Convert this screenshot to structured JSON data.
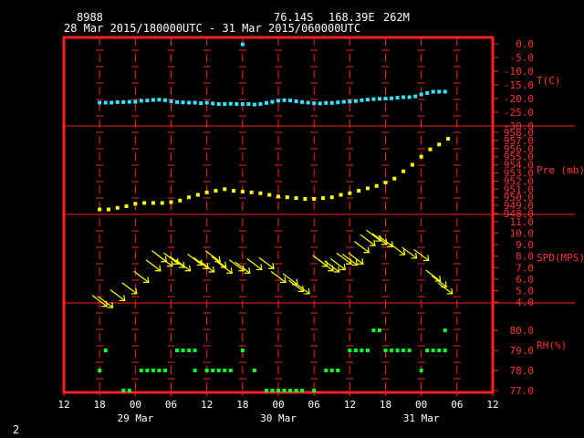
{
  "header": {
    "station_id": "8988",
    "lat": "76.14S",
    "lon": "168.39E",
    "elevation": "262M",
    "time_range": "28 Mar 2015/180000UTC - 31 Mar 2015/060000UTC"
  },
  "footer": {
    "page_number": "2"
  },
  "colors": {
    "frame": "#ff2020",
    "text": "#ffffff",
    "temp": "#33e5ff",
    "pres": "#ffff00",
    "wind": "#ffff00",
    "rh": "#00ff33",
    "label": "#ff3030"
  },
  "chart_data": {
    "type": "scatter",
    "x_range_hours": [
      12,
      84
    ],
    "x_ticks": [
      {
        "h": 12,
        "label": "12"
      },
      {
        "h": 18,
        "label": "18"
      },
      {
        "h": 24,
        "label": "00"
      },
      {
        "h": 30,
        "label": "06"
      },
      {
        "h": 36,
        "label": "12"
      },
      {
        "h": 42,
        "label": "18"
      },
      {
        "h": 48,
        "label": "00"
      },
      {
        "h": 54,
        "label": "06"
      },
      {
        "h": 60,
        "label": "12"
      },
      {
        "h": 66,
        "label": "18"
      },
      {
        "h": 72,
        "label": "00"
      },
      {
        "h": 78,
        "label": "06"
      },
      {
        "h": 84,
        "label": "12"
      }
    ],
    "day_labels": [
      {
        "h": 24,
        "label": "29 Mar"
      },
      {
        "h": 48,
        "label": "30 Mar"
      },
      {
        "h": 72,
        "label": "31 Mar"
      }
    ],
    "panels": [
      {
        "id": "temp",
        "label": "T(C)",
        "range": [
          -30,
          0
        ],
        "ticks": [
          "0.0",
          "-5.0",
          "-10.0",
          "-15.0",
          "-20.0",
          "-25.0",
          "-30.0"
        ],
        "tick_values": [
          0,
          -5,
          -10,
          -15,
          -20,
          -25,
          -30
        ],
        "points": [
          [
            18,
            -21.5
          ],
          [
            19,
            -21.5
          ],
          [
            20,
            -21.5
          ],
          [
            21,
            -21.3
          ],
          [
            22,
            -21.3
          ],
          [
            23,
            -21.2
          ],
          [
            24,
            -21.2
          ],
          [
            25,
            -20.8
          ],
          [
            26,
            -20.7
          ],
          [
            27,
            -20.5
          ],
          [
            28,
            -20.4
          ],
          [
            29,
            -20.6
          ],
          [
            30,
            -21
          ],
          [
            31,
            -21.3
          ],
          [
            32,
            -21.4
          ],
          [
            33,
            -21.5
          ],
          [
            34,
            -21.5
          ],
          [
            35,
            -21.7
          ],
          [
            36,
            -21.5
          ],
          [
            37,
            -21.8
          ],
          [
            38,
            -22
          ],
          [
            39,
            -22
          ],
          [
            40,
            -21.9
          ],
          [
            41,
            -22
          ],
          [
            42,
            -22
          ],
          [
            43,
            -22
          ],
          [
            44,
            -22.2
          ],
          [
            45,
            -22
          ],
          [
            46,
            -21.6
          ],
          [
            47,
            -21.2
          ],
          [
            48,
            -20.8
          ],
          [
            49,
            -20.6
          ],
          [
            50,
            -20.7
          ],
          [
            51,
            -21
          ],
          [
            52,
            -21.3
          ],
          [
            53,
            -21.5
          ],
          [
            54,
            -21.7
          ],
          [
            55,
            -21.8
          ],
          [
            56,
            -21.6
          ],
          [
            57,
            -21.6
          ],
          [
            58,
            -21.4
          ],
          [
            59,
            -21.2
          ],
          [
            60,
            -21.1
          ],
          [
            61,
            -20.9
          ],
          [
            62,
            -20.6
          ],
          [
            63,
            -20.4
          ],
          [
            64,
            -20.2
          ],
          [
            65,
            -20.1
          ],
          [
            66,
            -20
          ],
          [
            67,
            -19.9
          ],
          [
            68,
            -19.7
          ],
          [
            69,
            -19.5
          ],
          [
            70,
            -19.5
          ],
          [
            71,
            -19.2
          ],
          [
            72,
            -18.5
          ],
          [
            73,
            -18
          ],
          [
            74,
            -17.5
          ],
          [
            75,
            -17.5
          ],
          [
            76,
            -17.5
          ],
          [
            42,
            -0.2
          ]
        ]
      },
      {
        "id": "pres",
        "label": "Pre (mb)",
        "range": [
          948,
          958
        ],
        "ticks": [
          "958.0",
          "957.0",
          "956.0",
          "955.0",
          "954.0",
          "953.0",
          "952.0",
          "951.0",
          "950.0",
          "949.0",
          "948.0"
        ],
        "tick_values": [
          958,
          957,
          956,
          955,
          954,
          953,
          952,
          951,
          950,
          949,
          948
        ],
        "points": [
          [
            18,
            948.5
          ],
          [
            19.5,
            948.5
          ],
          [
            21,
            948.7
          ],
          [
            22.5,
            948.9
          ],
          [
            24,
            949.2
          ],
          [
            25.5,
            949.3
          ],
          [
            27,
            949.3
          ],
          [
            28.5,
            949.3
          ],
          [
            30,
            949.4
          ],
          [
            31.5,
            949.6
          ],
          [
            33,
            950
          ],
          [
            34.5,
            950.3
          ],
          [
            36,
            950.6
          ],
          [
            37.5,
            950.8
          ],
          [
            39,
            951
          ],
          [
            40.5,
            950.8
          ],
          [
            42,
            950.7
          ],
          [
            43.5,
            950.6
          ],
          [
            45,
            950.5
          ],
          [
            46.5,
            950.3
          ],
          [
            48,
            950.1
          ],
          [
            49.5,
            950
          ],
          [
            51,
            949.9
          ],
          [
            52.5,
            949.8
          ],
          [
            54,
            949.8
          ],
          [
            55.5,
            949.9
          ],
          [
            57,
            950
          ],
          [
            58.5,
            950.3
          ],
          [
            60,
            950.5
          ],
          [
            61.5,
            950.8
          ],
          [
            63,
            951.1
          ],
          [
            64.5,
            951.4
          ],
          [
            66,
            951.8
          ],
          [
            67.5,
            952.3
          ],
          [
            69,
            953.2
          ],
          [
            70.5,
            954
          ],
          [
            72,
            955
          ],
          [
            73.5,
            955.9
          ],
          [
            75,
            956.5
          ],
          [
            76.5,
            957.2
          ]
        ]
      },
      {
        "id": "wind",
        "label": "SPD(MPS)",
        "range": [
          4,
          11
        ],
        "ticks": [
          "11.0",
          "10.0",
          "9.0",
          "8.0",
          "7.0",
          "6.0",
          "5.0",
          "4.0"
        ],
        "tick_values": [
          11,
          10,
          9,
          8,
          7,
          6,
          5,
          4
        ],
        "points": [
          [
            18,
            4.1
          ],
          [
            19,
            4
          ],
          [
            21,
            4.6
          ],
          [
            23,
            5.2
          ],
          [
            25,
            6.2
          ],
          [
            27,
            7.2
          ],
          [
            28,
            8
          ],
          [
            29,
            7.6
          ],
          [
            30,
            7.8
          ],
          [
            31,
            7.5
          ],
          [
            32,
            7.2
          ],
          [
            34,
            7.7
          ],
          [
            35,
            7.4
          ],
          [
            36,
            7.1
          ],
          [
            37,
            8
          ],
          [
            38,
            7.5
          ],
          [
            39,
            7
          ],
          [
            41,
            7.2
          ],
          [
            42,
            7
          ],
          [
            44,
            7.3
          ],
          [
            46,
            7.4
          ],
          [
            48,
            6.2
          ],
          [
            50,
            6
          ],
          [
            51,
            5.4
          ],
          [
            52,
            5.2
          ],
          [
            55,
            7.6
          ],
          [
            56,
            7.2
          ],
          [
            57,
            7.1
          ],
          [
            58,
            7.3
          ],
          [
            59,
            7.8
          ],
          [
            60,
            7.7
          ],
          [
            61,
            7.8
          ],
          [
            62,
            8.8
          ],
          [
            63,
            9.4
          ],
          [
            64,
            9.8
          ],
          [
            65,
            9.5
          ],
          [
            66,
            9.3
          ],
          [
            68,
            8.6
          ],
          [
            70,
            8.3
          ],
          [
            72,
            8.1
          ],
          [
            74,
            6.3
          ],
          [
            75,
            5.8
          ],
          [
            76,
            5.2
          ]
        ]
      },
      {
        "id": "rh",
        "label": "RH(%)",
        "range": [
          77,
          81
        ],
        "ticks": [
          "80.0",
          "79.0",
          "78.0",
          "77.0"
        ],
        "tick_values": [
          80,
          79,
          78,
          77
        ],
        "points": [
          [
            18,
            78
          ],
          [
            19,
            79
          ],
          [
            22,
            77
          ],
          [
            23,
            77
          ],
          [
            25,
            78
          ],
          [
            26,
            78
          ],
          [
            27,
            78
          ],
          [
            28,
            78
          ],
          [
            29,
            78
          ],
          [
            31,
            79
          ],
          [
            32,
            79
          ],
          [
            33,
            79
          ],
          [
            34,
            79
          ],
          [
            34,
            78
          ],
          [
            36,
            78
          ],
          [
            37,
            78
          ],
          [
            38,
            78
          ],
          [
            39,
            78
          ],
          [
            40,
            78
          ],
          [
            42,
            79
          ],
          [
            44,
            78
          ],
          [
            46,
            77
          ],
          [
            47,
            77
          ],
          [
            48,
            77
          ],
          [
            49,
            77
          ],
          [
            50,
            77
          ],
          [
            51,
            77
          ],
          [
            52,
            77
          ],
          [
            54,
            77
          ],
          [
            56,
            78
          ],
          [
            57,
            78
          ],
          [
            58,
            78
          ],
          [
            60,
            79
          ],
          [
            61,
            79
          ],
          [
            62,
            79
          ],
          [
            63,
            79
          ],
          [
            64,
            80
          ],
          [
            65,
            80
          ],
          [
            66,
            79
          ],
          [
            67,
            79
          ],
          [
            68,
            79
          ],
          [
            69,
            79
          ],
          [
            70,
            79
          ],
          [
            72,
            78
          ],
          [
            73,
            79
          ],
          [
            74,
            79
          ],
          [
            75,
            79
          ],
          [
            76,
            79
          ],
          [
            76,
            80
          ]
        ]
      }
    ]
  }
}
